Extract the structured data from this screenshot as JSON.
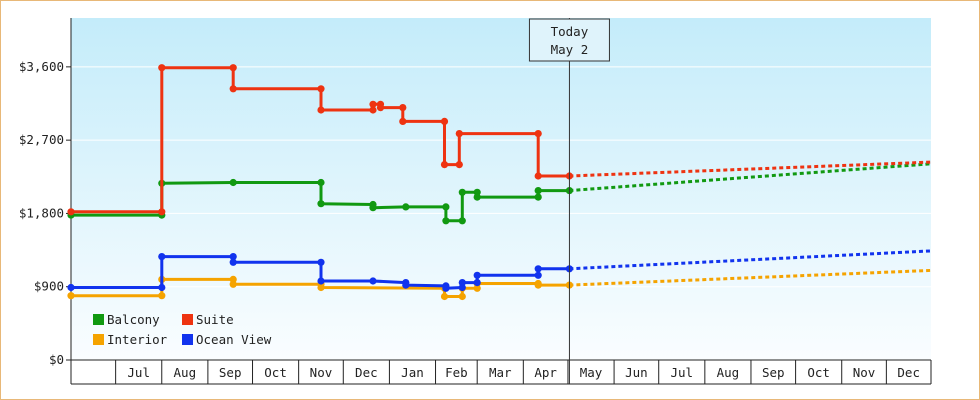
{
  "chart_data": {
    "type": "line",
    "title": "",
    "xlabel": "",
    "ylabel": "",
    "ylim": [
      0,
      4200
    ],
    "y_ticks": [
      {
        "value": 0,
        "label": "$0"
      },
      {
        "value": 900,
        "label": "$900"
      },
      {
        "value": 1800,
        "label": "$1,800"
      },
      {
        "value": 2700,
        "label": "$2,700"
      },
      {
        "value": 3600,
        "label": "$3,600"
      }
    ],
    "x_range": [
      "2025-06-01",
      "2026-12-31"
    ],
    "x_ticks": [
      {
        "label": "Jul",
        "start": "2025-07-01",
        "end": "2025-08-01"
      },
      {
        "label": "Aug",
        "start": "2025-08-01",
        "end": "2025-09-01"
      },
      {
        "label": "Sep",
        "start": "2025-09-01",
        "end": "2025-10-01"
      },
      {
        "label": "Oct",
        "start": "2025-10-01",
        "end": "2025-11-01"
      },
      {
        "label": "Nov",
        "start": "2025-11-01",
        "end": "2025-12-01"
      },
      {
        "label": "Dec",
        "start": "2025-12-01",
        "end": "2026-01-01"
      },
      {
        "label": "Jan",
        "start": "2026-01-01",
        "end": "2026-02-01"
      },
      {
        "label": "Feb",
        "start": "2026-02-01",
        "end": "2026-03-01"
      },
      {
        "label": "Mar",
        "start": "2026-03-01",
        "end": "2026-04-01"
      },
      {
        "label": "Apr",
        "start": "2026-04-01",
        "end": "2026-05-01"
      },
      {
        "label": "May",
        "start": "2026-05-01",
        "end": "2026-06-01"
      },
      {
        "label": "Jun",
        "start": "2026-06-01",
        "end": "2026-07-01"
      },
      {
        "label": "Jul",
        "start": "2026-07-01",
        "end": "2026-08-01"
      },
      {
        "label": "Aug",
        "start": "2026-08-01",
        "end": "2026-09-01"
      },
      {
        "label": "Sep",
        "start": "2026-09-01",
        "end": "2026-10-01"
      },
      {
        "label": "Oct",
        "start": "2026-10-01",
        "end": "2026-11-01"
      },
      {
        "label": "Nov",
        "start": "2026-11-01",
        "end": "2026-12-01"
      },
      {
        "label": "Dec",
        "start": "2026-12-01",
        "end": "2026-12-31"
      }
    ],
    "today": {
      "line1": "Today",
      "line2": "May 2",
      "date": "2026-05-02"
    },
    "legend": {
      "placement": "bottom-left"
    },
    "series": [
      {
        "name": "Balcony",
        "color": "#119911",
        "points": [
          [
            "2025-06-01",
            1780
          ],
          [
            "2025-08-01",
            1780
          ],
          [
            "2025-08-01",
            2170
          ],
          [
            "2025-09-18",
            2180
          ],
          [
            "2025-11-16",
            2180
          ],
          [
            "2025-11-16",
            1920
          ],
          [
            "2025-12-21",
            1910
          ],
          [
            "2025-12-21",
            1870
          ],
          [
            "2026-01-12",
            1880
          ],
          [
            "2026-02-08",
            1880
          ],
          [
            "2026-02-08",
            1710
          ],
          [
            "2026-02-19",
            1710
          ],
          [
            "2026-02-19",
            2060
          ],
          [
            "2026-03-01",
            2060
          ],
          [
            "2026-03-01",
            2000
          ],
          [
            "2026-04-11",
            2000
          ],
          [
            "2026-04-11",
            2080
          ],
          [
            "2026-05-02",
            2080
          ]
        ],
        "forecast": [
          [
            "2026-05-02",
            2080
          ],
          [
            "2026-12-31",
            2410
          ]
        ]
      },
      {
        "name": "Suite",
        "color": "#ee3311",
        "points": [
          [
            "2025-06-01",
            1820
          ],
          [
            "2025-08-01",
            1820
          ],
          [
            "2025-08-01",
            3590
          ],
          [
            "2025-09-18",
            3590
          ],
          [
            "2025-09-18",
            3330
          ],
          [
            "2025-11-16",
            3330
          ],
          [
            "2025-11-16",
            3070
          ],
          [
            "2025-12-21",
            3070
          ],
          [
            "2025-12-21",
            3140
          ],
          [
            "2025-12-26",
            3140
          ],
          [
            "2025-12-26",
            3100
          ],
          [
            "2026-01-10",
            3100
          ],
          [
            "2026-01-10",
            2930
          ],
          [
            "2026-02-07",
            2930
          ],
          [
            "2026-02-07",
            2400
          ],
          [
            "2026-02-17",
            2400
          ],
          [
            "2026-02-17",
            2780
          ],
          [
            "2026-04-11",
            2780
          ],
          [
            "2026-04-11",
            2260
          ],
          [
            "2026-05-02",
            2260
          ]
        ],
        "forecast": [
          [
            "2026-05-02",
            2260
          ],
          [
            "2026-12-31",
            2430
          ]
        ]
      },
      {
        "name": "Interior",
        "color": "#f5a300",
        "points": [
          [
            "2025-06-01",
            790
          ],
          [
            "2025-08-01",
            790
          ],
          [
            "2025-08-01",
            990
          ],
          [
            "2025-09-18",
            990
          ],
          [
            "2025-09-18",
            930
          ],
          [
            "2025-11-16",
            930
          ],
          [
            "2025-11-16",
            890
          ],
          [
            "2026-02-07",
            880
          ],
          [
            "2026-02-07",
            780
          ],
          [
            "2026-02-19",
            780
          ],
          [
            "2026-02-19",
            880
          ],
          [
            "2026-03-01",
            880
          ],
          [
            "2026-03-01",
            940
          ],
          [
            "2026-04-11",
            940
          ],
          [
            "2026-04-11",
            920
          ],
          [
            "2026-05-02",
            920
          ]
        ],
        "forecast": [
          [
            "2026-05-02",
            920
          ],
          [
            "2026-12-31",
            1100
          ]
        ]
      },
      {
        "name": "Ocean View",
        "color": "#1133ee",
        "points": [
          [
            "2025-06-01",
            890
          ],
          [
            "2025-08-01",
            890
          ],
          [
            "2025-08-01",
            1270
          ],
          [
            "2025-09-18",
            1270
          ],
          [
            "2025-09-18",
            1200
          ],
          [
            "2025-11-16",
            1200
          ],
          [
            "2025-11-16",
            970
          ],
          [
            "2025-12-21",
            970
          ],
          [
            "2026-01-12",
            950
          ],
          [
            "2026-01-12",
            920
          ],
          [
            "2026-02-08",
            910
          ],
          [
            "2026-02-08",
            880
          ],
          [
            "2026-02-19",
            890
          ],
          [
            "2026-02-19",
            950
          ],
          [
            "2026-03-01",
            950
          ],
          [
            "2026-03-01",
            1040
          ],
          [
            "2026-04-11",
            1040
          ],
          [
            "2026-04-11",
            1120
          ],
          [
            "2026-05-02",
            1120
          ]
        ],
        "forecast": [
          [
            "2026-05-02",
            1120
          ],
          [
            "2026-12-31",
            1340
          ]
        ]
      }
    ]
  }
}
